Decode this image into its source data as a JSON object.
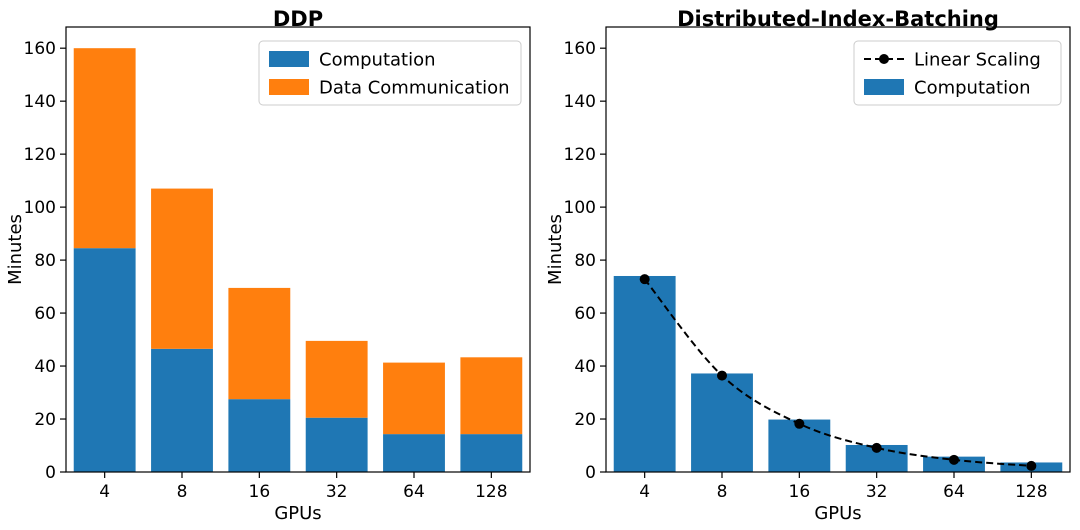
{
  "colors": {
    "computation": "#1f77b4",
    "data_communication": "#ff7f0e",
    "linear_scaling": "#000000"
  },
  "chart_data": [
    {
      "type": "bar",
      "stacked": true,
      "title": "DDP",
      "xlabel": "GPUs",
      "ylabel": "Minutes",
      "ylim": [
        0,
        168
      ],
      "yticks": [
        0,
        20,
        40,
        60,
        80,
        100,
        120,
        140,
        160
      ],
      "categories": [
        "4",
        "8",
        "16",
        "32",
        "64",
        "128"
      ],
      "series": [
        {
          "name": "Computation",
          "color_key": "computation",
          "values": [
            84.5,
            46.5,
            27.5,
            20.5,
            14.3,
            14.3
          ]
        },
        {
          "name": "Data Communication",
          "color_key": "data_communication",
          "values": [
            75.5,
            60.5,
            42.0,
            29.0,
            27.0,
            29.0
          ]
        }
      ],
      "legend": {
        "position": "top-right",
        "entries": [
          "Computation",
          "Data Communication"
        ]
      }
    },
    {
      "type": "bar",
      "title": "Distributed-Index-Batching",
      "xlabel": "GPUs",
      "ylabel": "Minutes",
      "ylim": [
        0,
        168
      ],
      "yticks": [
        0,
        20,
        40,
        60,
        80,
        100,
        120,
        140,
        160
      ],
      "categories": [
        "4",
        "8",
        "16",
        "32",
        "64",
        "128"
      ],
      "series": [
        {
          "name": "Computation",
          "color_key": "computation",
          "values": [
            74.0,
            37.2,
            19.8,
            10.2,
            5.8,
            3.6
          ]
        }
      ],
      "line_series": [
        {
          "name": "Linear Scaling",
          "color_key": "linear_scaling",
          "style": "dashed-with-markers",
          "values": [
            72.8,
            36.4,
            18.2,
            9.1,
            4.6,
            2.3
          ]
        }
      ],
      "legend": {
        "position": "top-right",
        "entries": [
          "Linear Scaling",
          "Computation"
        ]
      }
    }
  ]
}
